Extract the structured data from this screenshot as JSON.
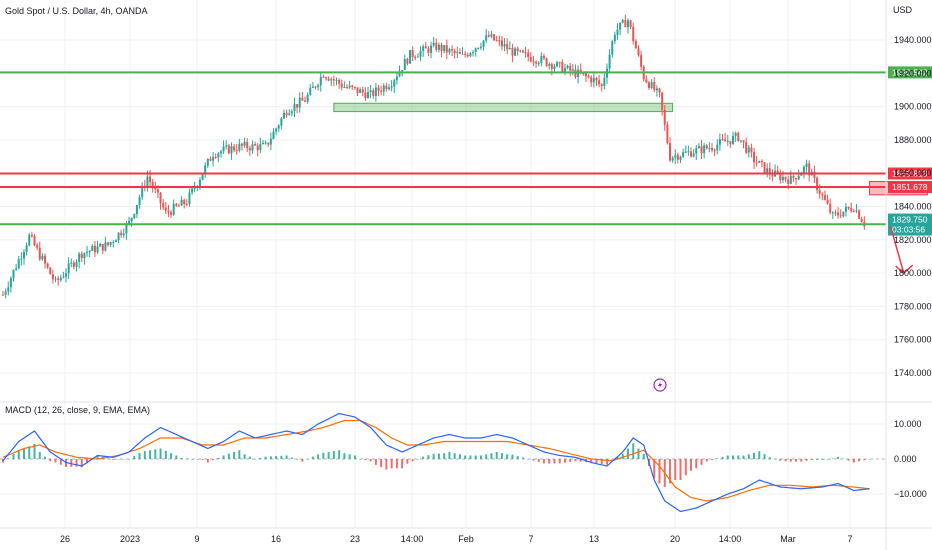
{
  "header": {
    "title": "Gold Spot / U.S. Dollar, 4h, OANDA"
  },
  "colors": {
    "up": "#26a69a",
    "down": "#ef5350",
    "grid": "#eef0f3",
    "support": "#4caf50",
    "resistance": "#f23645",
    "macd": "#2962ff",
    "signal": "#ff6d00",
    "hist_up": "#26a69a",
    "hist_down": "#ef5350",
    "lightning": "#9c27b0"
  },
  "chart_data": [
    {
      "type": "candlestick",
      "title": "Gold Spot / U.S. Dollar, 4h, OANDA",
      "ylabel": "USD",
      "ylim": [
        1725,
        1960
      ],
      "x_ticks": [
        "26",
        "2023",
        "9",
        "16",
        "23",
        "14:00",
        "Feb",
        "7",
        "13",
        "20",
        "14:00",
        "Mar",
        "7"
      ],
      "y_ticks": [
        1740,
        1760,
        1780,
        1800,
        1820,
        1840,
        1860,
        1880,
        1900,
        1920,
        1940
      ],
      "y_tick_labels": [
        "1740.000",
        "1760.000",
        "1780.000",
        "1800.000",
        "1820.000",
        "1840.000",
        "1860.000",
        "1880.000",
        "1900.000",
        "1920.000",
        "1940.000"
      ],
      "anchors": [
        [
          0,
          1787
        ],
        [
          10,
          1822
        ],
        [
          20,
          1794
        ],
        [
          30,
          1812
        ],
        [
          40,
          1817
        ],
        [
          48,
          1830
        ],
        [
          55,
          1858
        ],
        [
          62,
          1836
        ],
        [
          70,
          1843
        ],
        [
          80,
          1872
        ],
        [
          90,
          1876
        ],
        [
          100,
          1876
        ],
        [
          108,
          1898
        ],
        [
          115,
          1904
        ],
        [
          122,
          1920
        ],
        [
          130,
          1912
        ],
        [
          140,
          1907
        ],
        [
          148,
          1915
        ],
        [
          155,
          1931
        ],
        [
          165,
          1936
        ],
        [
          175,
          1930
        ],
        [
          185,
          1942
        ],
        [
          195,
          1932
        ],
        [
          205,
          1928
        ],
        [
          215,
          1922
        ],
        [
          225,
          1916
        ],
        [
          228,
          1912
        ],
        [
          233,
          1945
        ],
        [
          238,
          1952
        ],
        [
          241,
          1935
        ],
        [
          244,
          1918
        ],
        [
          250,
          1906
        ],
        [
          254,
          1870
        ],
        [
          260,
          1872
        ],
        [
          270,
          1876
        ],
        [
          280,
          1882
        ],
        [
          286,
          1868
        ],
        [
          292,
          1860
        ],
        [
          300,
          1856
        ],
        [
          306,
          1864
        ],
        [
          310,
          1852
        ],
        [
          316,
          1834
        ],
        [
          324,
          1840
        ],
        [
          328,
          1830
        ]
      ],
      "levels": [
        {
          "name": "support",
          "value": 1920.542,
          "label": "1920.542"
        },
        {
          "name": "resistance",
          "value": 1859.813,
          "label": "1859.813"
        },
        {
          "name": "resistance",
          "value": 1851.678,
          "label": "1851.678"
        },
        {
          "name": "support",
          "value": 1829.325,
          "label": "1829.325"
        }
      ],
      "last_price": {
        "value": 1829.75,
        "label": "1829.750",
        "countdown": "03:03:56"
      },
      "zones": [
        {
          "name": "support-zone",
          "x_from": 126,
          "x_to": 255,
          "y_from": 1897,
          "y_to": 1902
        },
        {
          "name": "resistance-zone",
          "x_from": 330,
          "x_to": 352,
          "y_from": 1847,
          "y_to": 1855
        }
      ],
      "projection": {
        "from": [
          338,
          1828
        ],
        "to": [
          343,
          1800
        ]
      }
    },
    {
      "type": "macd",
      "title": "MACD (12, 26, close, 9, EMA, EMA)",
      "ylim": [
        -17,
        15
      ],
      "y_ticks": [
        10,
        0,
        -10
      ],
      "y_tick_labels": [
        "10.000",
        "0.000",
        "−10.000"
      ],
      "macd_anchors": [
        [
          0,
          -0.5
        ],
        [
          6,
          5
        ],
        [
          12,
          8
        ],
        [
          18,
          2
        ],
        [
          24,
          -1
        ],
        [
          30,
          -2
        ],
        [
          36,
          1
        ],
        [
          42,
          0.5
        ],
        [
          48,
          2
        ],
        [
          54,
          6
        ],
        [
          60,
          9
        ],
        [
          66,
          7
        ],
        [
          72,
          5
        ],
        [
          78,
          3
        ],
        [
          84,
          5
        ],
        [
          90,
          8
        ],
        [
          96,
          6
        ],
        [
          102,
          7
        ],
        [
          108,
          8
        ],
        [
          114,
          7
        ],
        [
          120,
          10
        ],
        [
          128,
          13
        ],
        [
          134,
          12
        ],
        [
          140,
          9
        ],
        [
          146,
          4
        ],
        [
          152,
          2
        ],
        [
          158,
          4
        ],
        [
          164,
          6
        ],
        [
          170,
          7
        ],
        [
          176,
          6
        ],
        [
          182,
          6
        ],
        [
          188,
          7
        ],
        [
          194,
          6
        ],
        [
          200,
          4
        ],
        [
          206,
          2
        ],
        [
          212,
          1
        ],
        [
          218,
          0.5
        ],
        [
          224,
          -1
        ],
        [
          230,
          -2
        ],
        [
          236,
          2
        ],
        [
          240,
          6
        ],
        [
          244,
          4
        ],
        [
          248,
          -6
        ],
        [
          252,
          -12
        ],
        [
          258,
          -15
        ],
        [
          264,
          -14
        ],
        [
          270,
          -12
        ],
        [
          276,
          -10
        ],
        [
          282,
          -8.5
        ],
        [
          288,
          -6
        ],
        [
          296,
          -8
        ],
        [
          304,
          -8.5
        ],
        [
          312,
          -8
        ],
        [
          318,
          -7
        ],
        [
          324,
          -9
        ],
        [
          330,
          -8.5
        ]
      ],
      "signal_anchors": [
        [
          0,
          0.5
        ],
        [
          8,
          3
        ],
        [
          14,
          4
        ],
        [
          20,
          2
        ],
        [
          28,
          0.5
        ],
        [
          36,
          0
        ],
        [
          44,
          1
        ],
        [
          52,
          3
        ],
        [
          60,
          6
        ],
        [
          68,
          6
        ],
        [
          76,
          4
        ],
        [
          84,
          4
        ],
        [
          92,
          6
        ],
        [
          100,
          6
        ],
        [
          108,
          7
        ],
        [
          116,
          8
        ],
        [
          122,
          9
        ],
        [
          130,
          11
        ],
        [
          136,
          11
        ],
        [
          142,
          9
        ],
        [
          148,
          6
        ],
        [
          154,
          4
        ],
        [
          160,
          4
        ],
        [
          168,
          5
        ],
        [
          176,
          5
        ],
        [
          184,
          5
        ],
        [
          192,
          5
        ],
        [
          200,
          4
        ],
        [
          208,
          3
        ],
        [
          216,
          1.5
        ],
        [
          224,
          0
        ],
        [
          232,
          -0.5
        ],
        [
          238,
          1
        ],
        [
          244,
          2.5
        ],
        [
          250,
          -2
        ],
        [
          256,
          -8
        ],
        [
          262,
          -11
        ],
        [
          268,
          -12
        ],
        [
          276,
          -11
        ],
        [
          284,
          -9
        ],
        [
          292,
          -7.5
        ],
        [
          300,
          -7.5
        ],
        [
          308,
          -8
        ],
        [
          316,
          -7.5
        ],
        [
          324,
          -8
        ],
        [
          330,
          -8.5
        ]
      ]
    }
  ]
}
